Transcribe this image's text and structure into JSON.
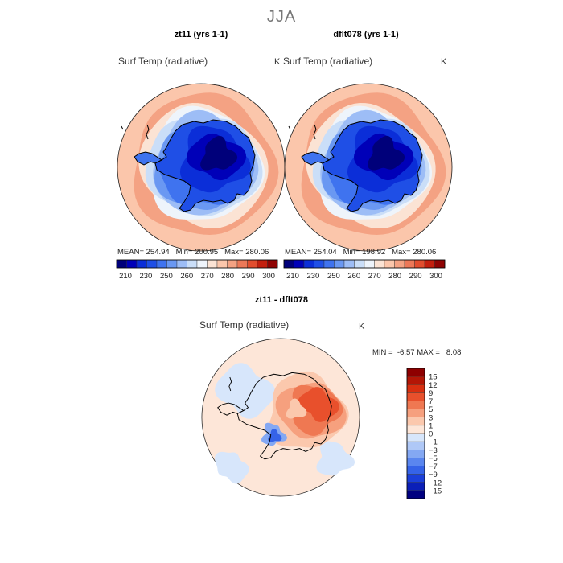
{
  "figure": {
    "season": "JJA",
    "colors": {
      "background": "#ffffff",
      "coastline": "#000000"
    }
  },
  "panels": [
    {
      "title": "zt11 (yrs 1-1)",
      "variable": "Surf Temp (radiative)",
      "units": "K",
      "stats": {
        "mean_label": "MEAN=",
        "mean": "254.94",
        "min_label": "Min=",
        "min": "200.95",
        "max_label": "Max=",
        "max": "280.06"
      }
    },
    {
      "title": "dflt078 (yrs 1-1)",
      "variable": "Surf Temp (radiative)",
      "units": "K",
      "stats": {
        "mean_label": "MEAN=",
        "mean": "254.04",
        "min_label": "Min=",
        "min": "198.92",
        "max_label": "Max=",
        "max": "280.06"
      }
    }
  ],
  "diff_panel": {
    "title": "zt11 - dflt078",
    "variable": "Surf Temp (radiative)",
    "units": "K",
    "stats": {
      "min_label": "MIN =",
      "min": "-6.57",
      "max_label": "MAX =",
      "max": "8.08"
    }
  },
  "chart_data": [
    {
      "type": "heatmap",
      "projection": "south-polar-stereographic",
      "title": "zt11 (yrs 1-1)",
      "field": "Surf Temp (radiative)",
      "units": "K",
      "mean": 254.94,
      "min": 200.95,
      "max": 280.06,
      "colorbar": {
        "levels": [
          210,
          220,
          230,
          240,
          250,
          255,
          260,
          265,
          270,
          275,
          280,
          285,
          290,
          295,
          300
        ],
        "tick_labels": [
          "210",
          "230",
          "250",
          "260",
          "270",
          "280",
          "290",
          "300"
        ],
        "colors": [
          "#00007a",
          "#0000b8",
          "#0b2ed8",
          "#1f4fe6",
          "#3f73ef",
          "#6a98f2",
          "#9dbdf6",
          "#cadef8",
          "#eef4fb",
          "#fbe3d4",
          "#fbc6ab",
          "#f4a283",
          "#ec7858",
          "#e14d2e",
          "#c31f0e",
          "#8f0303"
        ]
      }
    },
    {
      "type": "heatmap",
      "projection": "south-polar-stereographic",
      "title": "dflt078 (yrs 1-1)",
      "field": "Surf Temp (radiative)",
      "units": "K",
      "mean": 254.04,
      "min": 198.92,
      "max": 280.06,
      "colorbar": {
        "levels": [
          210,
          220,
          230,
          240,
          250,
          255,
          260,
          265,
          270,
          275,
          280,
          285,
          290,
          295,
          300
        ],
        "tick_labels": [
          "210",
          "230",
          "250",
          "260",
          "270",
          "280",
          "290",
          "300"
        ],
        "colors": [
          "#00007a",
          "#0000b8",
          "#0b2ed8",
          "#1f4fe6",
          "#3f73ef",
          "#6a98f2",
          "#9dbdf6",
          "#cadef8",
          "#eef4fb",
          "#fbe3d4",
          "#fbc6ab",
          "#f4a283",
          "#ec7858",
          "#e14d2e",
          "#c31f0e",
          "#8f0303"
        ]
      }
    },
    {
      "type": "heatmap",
      "projection": "south-polar-stereographic",
      "title": "zt11 - dflt078",
      "field": "Surf Temp (radiative)",
      "units": "K",
      "min": -6.57,
      "max": 8.08,
      "colorbar": {
        "levels": [
          -15,
          -12,
          -9,
          -7,
          -5,
          -3,
          -1,
          0,
          1,
          3,
          5,
          7,
          9,
          12,
          15
        ],
        "tick_labels": [
          "15",
          "12",
          "9",
          "7",
          "5",
          "3",
          "1",
          "0",
          "−1",
          "−3",
          "−5",
          "−7",
          "−9",
          "−12",
          "−15"
        ],
        "colors": [
          "#000080",
          "#0b1fb8",
          "#1b3fd9",
          "#3563e8",
          "#5a86ef",
          "#84a8f3",
          "#afc8f7",
          "#d7e6fb",
          "#fde6d8",
          "#fbc8ad",
          "#f6a07e",
          "#ef7852",
          "#e8502c",
          "#d82f10",
          "#b41606",
          "#8e0000"
        ]
      }
    }
  ]
}
